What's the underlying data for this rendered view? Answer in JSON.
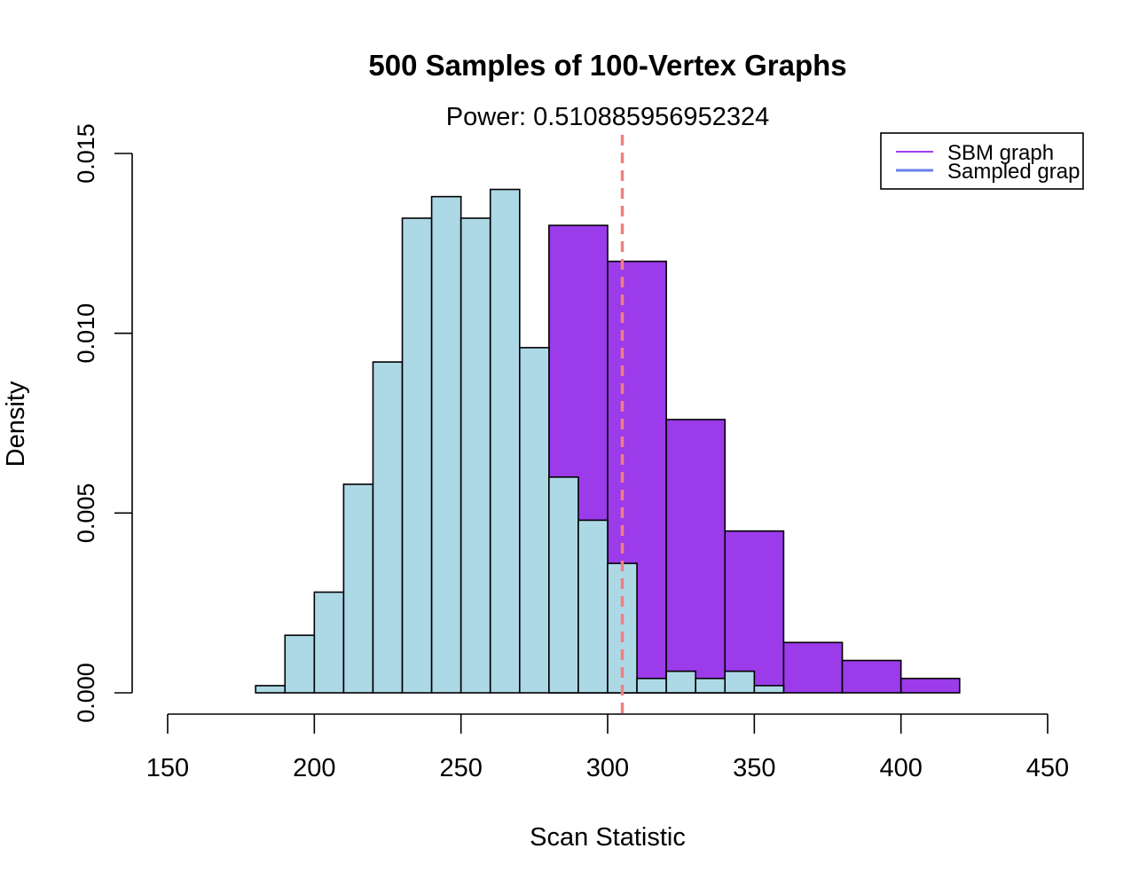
{
  "chart_data": {
    "type": "bar",
    "title": "500 Samples of 100-Vertex Graphs",
    "subtitle": "Power: 0.510885956952324",
    "xlabel": "Scan Statistic",
    "ylabel": "Density",
    "xlim": [
      150,
      450
    ],
    "ylim": [
      0,
      0.015
    ],
    "x_ticks": [
      "150",
      "200",
      "250",
      "300",
      "350",
      "400",
      "450"
    ],
    "y_ticks": [
      "0.000",
      "0.005",
      "0.010",
      "0.015"
    ],
    "grid": false,
    "legend_placement": "top-right",
    "vline": {
      "x": 305,
      "color": "#f08080",
      "style": "dashed"
    },
    "series": [
      {
        "name": "SBM graph",
        "legend_label": "SBM graph",
        "fill": "#9b3bea",
        "line": "#a040f0",
        "bins": [
          {
            "x0": 280,
            "x1": 300,
            "value": 0.013
          },
          {
            "x0": 300,
            "x1": 320,
            "value": 0.012
          },
          {
            "x0": 320,
            "x1": 340,
            "value": 0.0076
          },
          {
            "x0": 340,
            "x1": 360,
            "value": 0.0045
          },
          {
            "x0": 360,
            "x1": 380,
            "value": 0.0014
          },
          {
            "x0": 380,
            "x1": 400,
            "value": 0.0009
          },
          {
            "x0": 400,
            "x1": 420,
            "value": 0.0004
          }
        ]
      },
      {
        "name": "Sampled graph",
        "legend_label": "Sampled grap",
        "fill": "#add8e6",
        "line": "#6a7fe8",
        "bins": [
          {
            "x0": 180,
            "x1": 190,
            "value": 0.0002
          },
          {
            "x0": 190,
            "x1": 200,
            "value": 0.0016
          },
          {
            "x0": 200,
            "x1": 210,
            "value": 0.0028
          },
          {
            "x0": 210,
            "x1": 220,
            "value": 0.0058
          },
          {
            "x0": 220,
            "x1": 230,
            "value": 0.0092
          },
          {
            "x0": 230,
            "x1": 240,
            "value": 0.0132
          },
          {
            "x0": 240,
            "x1": 250,
            "value": 0.0138
          },
          {
            "x0": 250,
            "x1": 260,
            "value": 0.0132
          },
          {
            "x0": 260,
            "x1": 270,
            "value": 0.014
          },
          {
            "x0": 270,
            "x1": 280,
            "value": 0.0096
          },
          {
            "x0": 280,
            "x1": 290,
            "value": 0.006
          },
          {
            "x0": 290,
            "x1": 300,
            "value": 0.0048
          },
          {
            "x0": 300,
            "x1": 310,
            "value": 0.0036
          },
          {
            "x0": 310,
            "x1": 320,
            "value": 0.0004
          },
          {
            "x0": 320,
            "x1": 330,
            "value": 0.0006
          },
          {
            "x0": 330,
            "x1": 340,
            "value": 0.0004
          },
          {
            "x0": 340,
            "x1": 350,
            "value": 0.0006
          },
          {
            "x0": 350,
            "x1": 360,
            "value": 0.0002
          }
        ]
      }
    ]
  }
}
